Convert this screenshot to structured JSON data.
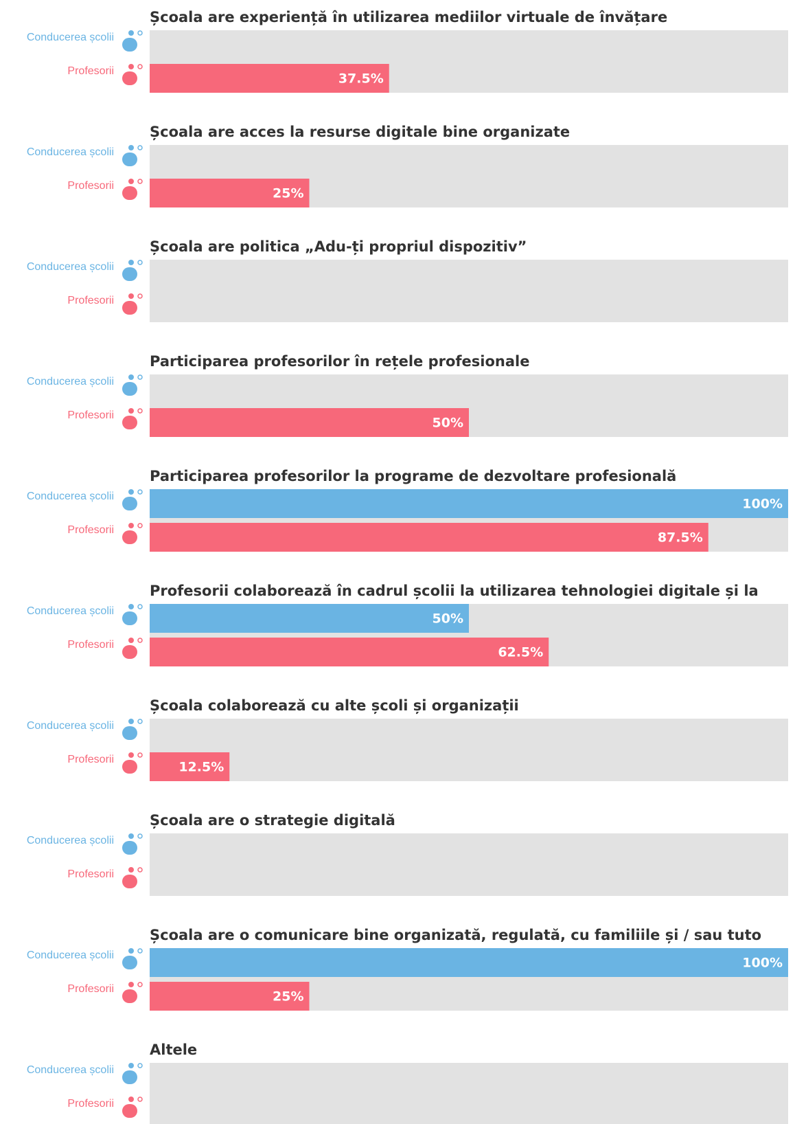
{
  "chart_data": {
    "type": "bar",
    "orientation": "horizontal",
    "categories": [
      "Școala are experiență în utilizarea mediilor virtuale de învățare",
      "Școala are acces la resurse digitale bine organizate",
      "Școala are politica „Adu-ți propriul dispozitiv”",
      "Participarea profesorilor în rețele profesionale",
      "Participarea profesorilor la programe de dezvoltare profesională",
      "Profesorii colaborează în cadrul școlii la utilizarea tehnologiei digitale și la",
      "Școala colaborează cu alte școli și organizații",
      "Școala are o strategie digitală",
      "Școala are o comunicare bine organizată, regulată, cu familiile și / sau tuto",
      "Altele"
    ],
    "series": [
      {
        "name": "Conducerea școlii",
        "color": "#6ab4e3",
        "values": [
          null,
          null,
          null,
          null,
          100,
          50,
          null,
          null,
          100,
          null
        ],
        "value_labels": [
          null,
          null,
          null,
          null,
          "100%",
          "50%",
          null,
          null,
          "100%",
          null
        ]
      },
      {
        "name": "Profesorii",
        "color": "#f7687a",
        "values": [
          37.5,
          25,
          null,
          50,
          87.5,
          62.5,
          12.5,
          null,
          25,
          null
        ],
        "value_labels": [
          "37.5%",
          "25%",
          null,
          "50%",
          "87.5%",
          "62.5%",
          "12.5%",
          null,
          "25%",
          null
        ]
      }
    ],
    "xlim": [
      0,
      100
    ]
  }
}
